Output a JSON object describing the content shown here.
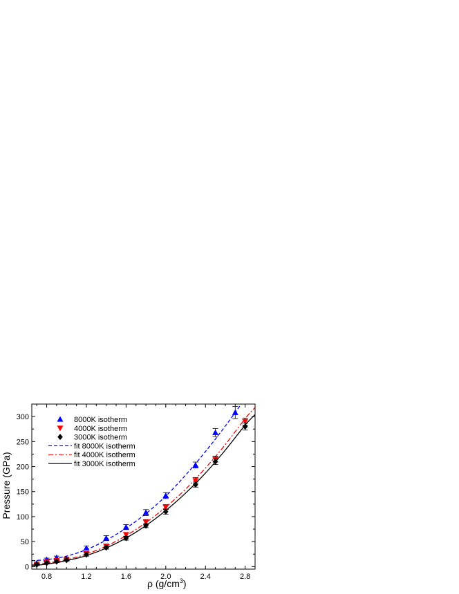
{
  "chart_data": {
    "type": "scatter",
    "xlabel": "ρ (g/cm³)",
    "xlabel_main": "ρ (g/cm",
    "xlabel_sup": "3",
    "xlabel_close": ")",
    "ylabel": "Pressure (GPa)",
    "xlim": [
      0.65,
      2.9
    ],
    "ylim": [
      -5,
      325
    ],
    "x_ticks": [
      0.8,
      1.2,
      1.6,
      2.0,
      2.4,
      2.8
    ],
    "x_tick_labels": [
      "0.8",
      "1.2",
      "1.6",
      "2.0",
      "2.4",
      "2.8"
    ],
    "y_ticks": [
      0,
      50,
      100,
      150,
      200,
      250,
      300
    ],
    "y_tick_labels": [
      "0",
      "50",
      "100",
      "150",
      "200",
      "250",
      "300"
    ],
    "grid": false,
    "legend_position": "top-left",
    "series": [
      {
        "name": "8000K isotherm",
        "marker": "triangle-up",
        "color": "#0000ff",
        "x": [
          0.7,
          0.8,
          0.9,
          1.0,
          1.2,
          1.4,
          1.6,
          1.8,
          2.0,
          2.3,
          2.5,
          2.7
        ],
        "y": [
          7,
          14,
          18,
          16,
          37,
          57,
          79,
          108,
          142,
          203,
          268,
          308
        ],
        "err": [
          2,
          3,
          3,
          3,
          4,
          5,
          5,
          6,
          6,
          6,
          8,
          12
        ]
      },
      {
        "name": "4000K isotherm",
        "marker": "triangle-down",
        "color": "#ff0000",
        "x": [
          0.7,
          0.8,
          0.9,
          1.0,
          1.2,
          1.4,
          1.6,
          1.8,
          2.0,
          2.3,
          2.5,
          2.8
        ],
        "y": [
          5,
          9,
          12,
          14,
          26,
          41,
          64,
          89,
          119,
          172,
          215,
          290
        ],
        "err": [
          2,
          2,
          2,
          2,
          3,
          4,
          4,
          5,
          5,
          6,
          6,
          7
        ]
      },
      {
        "name": "3000K isotherm",
        "marker": "diamond",
        "color": "#000000",
        "x": [
          0.7,
          0.8,
          0.9,
          1.0,
          1.2,
          1.4,
          1.6,
          1.8,
          2.0,
          2.3,
          2.5,
          2.8
        ],
        "y": [
          4,
          7,
          10,
          13,
          24,
          38,
          57,
          82,
          110,
          164,
          210,
          280
        ],
        "err": [
          2,
          2,
          2,
          2,
          3,
          3,
          4,
          4,
          5,
          5,
          6,
          7
        ]
      }
    ],
    "fits": [
      {
        "name": "fit  8000K isotherm",
        "color": "#0000ff",
        "dash": "dashed",
        "x": [
          0.65,
          0.8,
          1.0,
          1.2,
          1.4,
          1.6,
          1.8,
          2.0,
          2.2,
          2.4,
          2.6,
          2.8
        ],
        "y": [
          12,
          14,
          21,
          34,
          53,
          77,
          106,
          141,
          183,
          230,
          281,
          336
        ]
      },
      {
        "name": "fit  4000K isotherm",
        "color": "#ff0000",
        "dash": "dash-dot",
        "x": [
          0.65,
          0.8,
          1.0,
          1.2,
          1.4,
          1.6,
          1.8,
          2.0,
          2.2,
          2.4,
          2.6,
          2.8,
          2.9
        ],
        "y": [
          4,
          7,
          14,
          25,
          41,
          62,
          88,
          119,
          155,
          197,
          244,
          296,
          318
        ]
      },
      {
        "name": "fit  3000K isotherm",
        "color": "#000000",
        "dash": "solid",
        "x": [
          0.65,
          0.8,
          1.0,
          1.2,
          1.4,
          1.6,
          1.8,
          2.0,
          2.2,
          2.4,
          2.6,
          2.8,
          2.9
        ],
        "y": [
          2,
          5,
          12,
          22,
          37,
          57,
          82,
          112,
          147,
          187,
          233,
          283,
          304
        ]
      }
    ]
  }
}
